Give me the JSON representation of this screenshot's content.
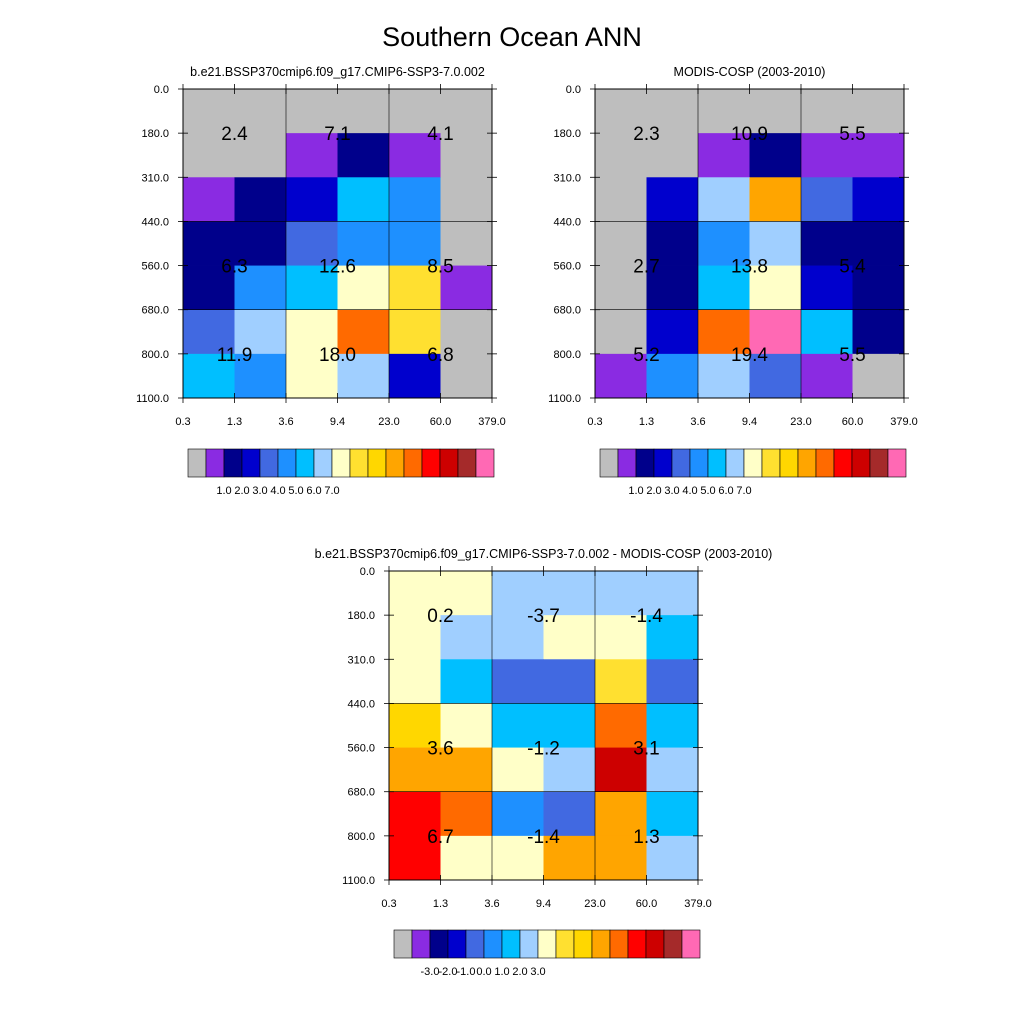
{
  "title": "Southern Ocean ANN",
  "colors": {
    "abs": [
      "#bebebe",
      "#8a2be2",
      "#00008b",
      "#0000cd",
      "#4169e1",
      "#1e90ff",
      "#00bfff",
      "#a0cfff",
      "#ffffc8",
      "#ffe030",
      "#ffd700",
      "#ffa500",
      "#ff6a00",
      "#ff0000",
      "#cd0000",
      "#a52a2a",
      "#ff69b4"
    ],
    "diff": [
      "#bebebe",
      "#8a2be2",
      "#00008b",
      "#0000cd",
      "#4169e1",
      "#1e90ff",
      "#00bfff",
      "#a0cfff",
      "#ffffc8",
      "#ffe030",
      "#ffd700",
      "#ffa500",
      "#ff6a00",
      "#ff0000",
      "#cd0000",
      "#a52a2a",
      "#ff69b4"
    ]
  },
  "chart_data": [
    {
      "type": "heatmap",
      "id": "model",
      "title": "b.e21.BSSP370cmip6.f09_g17.CMIP6-SSP3-7.0.002",
      "x_tick_labels": [
        "0.3",
        "1.3",
        "3.6",
        "9.4",
        "23.0",
        "60.0",
        "379.0"
      ],
      "y_tick_labels": [
        "0.0",
        "180.0",
        "310.0",
        "440.0",
        "560.0",
        "680.0",
        "800.0",
        "1100.0"
      ],
      "cell_color_index": [
        [
          0,
          0,
          0,
          0,
          0,
          0
        ],
        [
          0,
          0,
          1,
          2,
          1,
          0
        ],
        [
          1,
          2,
          3,
          6,
          5,
          0
        ],
        [
          2,
          2,
          4,
          5,
          5,
          0
        ],
        [
          2,
          5,
          6,
          8,
          9,
          1
        ],
        [
          4,
          7,
          8,
          12,
          9,
          0
        ],
        [
          6,
          5,
          8,
          7,
          3,
          0
        ]
      ],
      "block_values": [
        [
          "2.4",
          "7.1",
          "4.1"
        ],
        [
          "6.3",
          "12.6",
          "8.5"
        ],
        [
          "11.9",
          "18.0",
          "6.8"
        ]
      ],
      "colorbar": {
        "labels": [
          "1.0",
          "2.0",
          "3.0",
          "4.0",
          "5.0",
          "6.0",
          "7.0"
        ]
      }
    },
    {
      "type": "heatmap",
      "id": "obs",
      "title": "MODIS-COSP (2003-2010)",
      "x_tick_labels": [
        "0.3",
        "1.3",
        "3.6",
        "9.4",
        "23.0",
        "60.0",
        "379.0"
      ],
      "y_tick_labels": [
        "0.0",
        "180.0",
        "310.0",
        "440.0",
        "560.0",
        "680.0",
        "800.0",
        "1100.0"
      ],
      "cell_color_index": [
        [
          0,
          0,
          0,
          0,
          0,
          0
        ],
        [
          0,
          0,
          1,
          2,
          1,
          1
        ],
        [
          0,
          3,
          7,
          11,
          4,
          3
        ],
        [
          0,
          2,
          5,
          7,
          2,
          2
        ],
        [
          0,
          2,
          6,
          8,
          3,
          2
        ],
        [
          0,
          3,
          12,
          16,
          6,
          2
        ],
        [
          1,
          5,
          7,
          4,
          1,
          0
        ]
      ],
      "block_values": [
        [
          "2.3",
          "10.9",
          "5.5"
        ],
        [
          "2.7",
          "13.8",
          "5.4"
        ],
        [
          "5.2",
          "19.4",
          "5.5"
        ]
      ],
      "colorbar": {
        "labels": [
          "1.0",
          "2.0",
          "3.0",
          "4.0",
          "5.0",
          "6.0",
          "7.0"
        ]
      }
    },
    {
      "type": "heatmap",
      "id": "diff",
      "title": "b.e21.BSSP370cmip6.f09_g17.CMIP6-SSP3-7.0.002 - MODIS-COSP (2003-2010)",
      "x_tick_labels": [
        "0.3",
        "1.3",
        "3.6",
        "9.4",
        "23.0",
        "60.0",
        "379.0"
      ],
      "y_tick_labels": [
        "0.0",
        "180.0",
        "310.0",
        "440.0",
        "560.0",
        "680.0",
        "800.0",
        "1100.0"
      ],
      "cell_color_index": [
        [
          8,
          8,
          7,
          7,
          7,
          7
        ],
        [
          8,
          7,
          7,
          8,
          8,
          6
        ],
        [
          8,
          6,
          4,
          4,
          9,
          4
        ],
        [
          10,
          8,
          6,
          6,
          12,
          6
        ],
        [
          11,
          11,
          8,
          7,
          14,
          7
        ],
        [
          13,
          12,
          5,
          4,
          11,
          6
        ],
        [
          13,
          8,
          8,
          11,
          11,
          7
        ]
      ],
      "block_values": [
        [
          "0.2",
          "-3.7",
          "-1.4"
        ],
        [
          "3.6",
          "-1.2",
          "3.1"
        ],
        [
          "6.7",
          "-1.4",
          "1.3"
        ]
      ],
      "colorbar": {
        "labels": [
          "-3.0",
          "-2.0",
          "-1.0",
          "0.0",
          "1.0",
          "2.0",
          "3.0"
        ]
      }
    }
  ]
}
